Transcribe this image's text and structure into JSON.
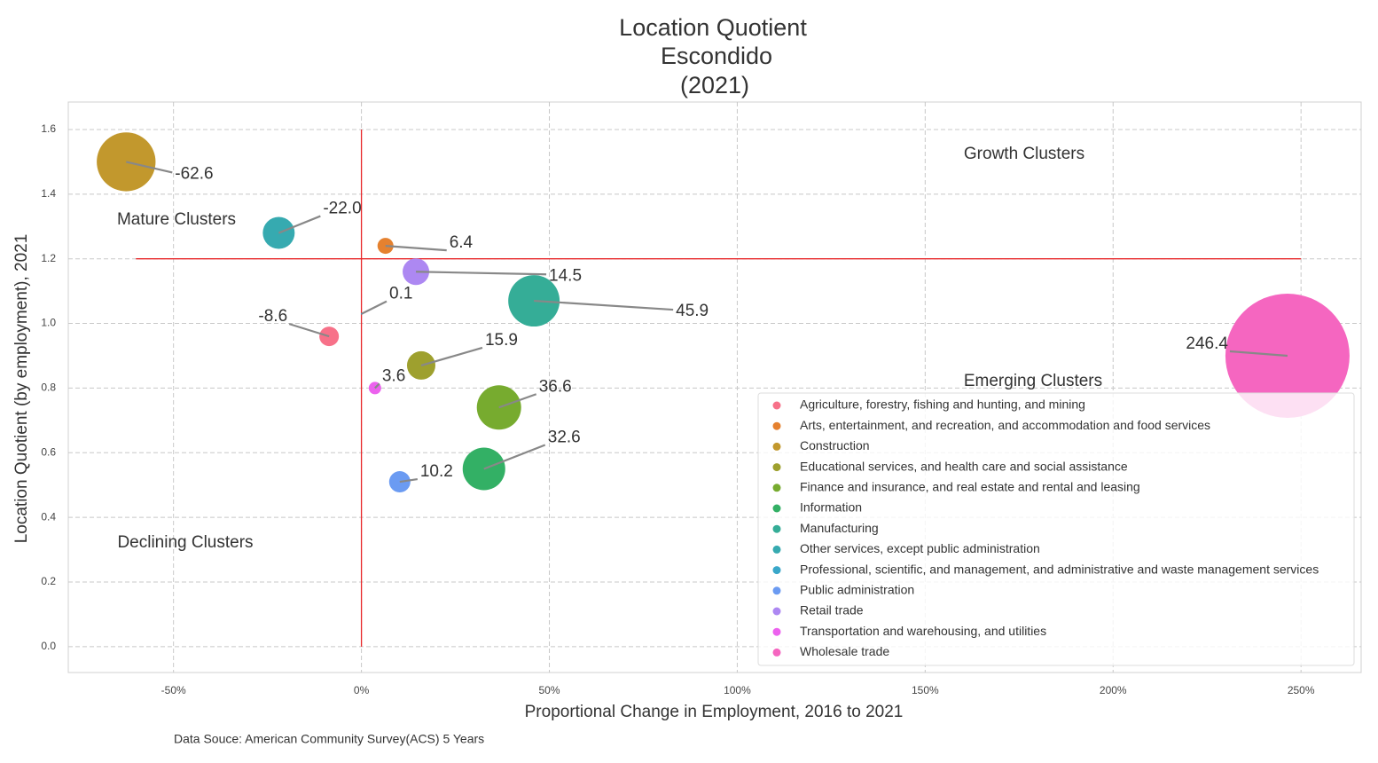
{
  "chart_data": {
    "type": "bubble",
    "title": [
      "Location Quotient",
      "Escondido",
      "(2021)"
    ],
    "x_label": "Proportional Change in Employment, 2016 to 2021",
    "y_label": "Location Quotient (by employment), 2021",
    "source": "Data Souce: American Community Survey(ACS) 5 Years",
    "xlim": [
      -78,
      266
    ],
    "ylim": [
      -0.08,
      1.685
    ],
    "xticks": [
      {
        "value": -50,
        "label": "-50%"
      },
      {
        "value": 0,
        "label": "0%"
      },
      {
        "value": 50,
        "label": "50%"
      },
      {
        "value": 100,
        "label": "100%"
      },
      {
        "value": 150,
        "label": "150%"
      },
      {
        "value": 200,
        "label": "200%"
      },
      {
        "value": 250,
        "label": "250%"
      }
    ],
    "yticks": [
      {
        "value": 0,
        "label": "0.0"
      },
      0.2,
      0.4,
      0.6,
      0.8,
      {
        "value": 1,
        "label": "1.0"
      },
      1.2,
      1.4,
      1.6
    ],
    "grid": true,
    "hline": {
      "y": 1.2,
      "xmin": -60,
      "xmax": 250,
      "color": "#e8272a"
    },
    "vline": {
      "x": 0,
      "ymin": 0,
      "ymax": 1.6,
      "color": "#e8272a"
    },
    "annotations": [
      "Growth Clusters",
      "Mature Clusters",
      "Declining Clusters",
      "Emerging Clusters"
    ],
    "legend": "lower right",
    "series": [
      {
        "name": "Agriculture, forestry, fishing and hunting, and mining",
        "color": "#f77189",
        "x": [
          -8.6
        ],
        "values": [
          0.96
        ],
        "sizes": [
          121
        ],
        "x_labels": [
          "-8.6"
        ]
      },
      {
        "name": "Arts, entertainment, and recreation, and accommodation and food services",
        "color": "#e5812f",
        "x": [
          6.4
        ],
        "values": [
          1.24
        ],
        "sizes": [
          81
        ],
        "x_labels": [
          "6.4"
        ]
      },
      {
        "name": "Construction",
        "color": "#c2982d",
        "x": [
          -62.6
        ],
        "values": [
          1.5
        ],
        "sizes": [
          1100
        ],
        "x_labels": [
          "-62.6"
        ]
      },
      {
        "name": "Educational services, and health care and social assistance",
        "color": "#9ea02e",
        "x": [
          15.9
        ],
        "values": [
          0.87
        ],
        "sizes": [
          256
        ],
        "x_labels": [
          "15.9"
        ]
      },
      {
        "name": "Finance and insurance, and real estate and rental and leasing",
        "color": "#77ab2f",
        "x": [
          36.6
        ],
        "values": [
          0.74
        ],
        "sizes": [
          625
        ],
        "x_labels": [
          "36.6"
        ]
      },
      {
        "name": "Information",
        "color": "#33b065",
        "x": [
          32.6
        ],
        "values": [
          0.55
        ],
        "sizes": [
          576
        ],
        "x_labels": [
          "32.6"
        ]
      },
      {
        "name": "Manufacturing",
        "color": "#35ad97",
        "x": [
          45.9
        ],
        "values": [
          1.07
        ],
        "sizes": [
          840
        ],
        "x_labels": [
          "45.9"
        ]
      },
      {
        "name": "Other services, except public administration",
        "color": "#36aab0",
        "x": [
          -22.0
        ],
        "values": [
          1.28
        ],
        "sizes": [
          324
        ],
        "x_labels": [
          "-22.0"
        ]
      },
      {
        "name": "Professional, scientific, and management, and administrative and waste management services",
        "color": "#39a7c9",
        "x": [
          0.1
        ],
        "values": [
          1.03
        ],
        "sizes": [
          1
        ],
        "x_labels": [
          "0.1"
        ]
      },
      {
        "name": "Public administration",
        "color": "#6b9bf2",
        "x": [
          10.2
        ],
        "values": [
          0.51
        ],
        "sizes": [
          144
        ],
        "x_labels": [
          "10.2"
        ]
      },
      {
        "name": "Retail trade",
        "color": "#ad88f2",
        "x": [
          14.5
        ],
        "values": [
          1.16
        ],
        "sizes": [
          225
        ],
        "x_labels": [
          "14.5"
        ]
      },
      {
        "name": "Transportation and warehousing, and utilities",
        "color": "#ec62ee",
        "x": [
          3.6
        ],
        "values": [
          0.8
        ],
        "sizes": [
          49
        ],
        "x_labels": [
          "3.6"
        ]
      },
      {
        "name": "Wholesale trade",
        "color": "#f566c0",
        "x": [
          246.4
        ],
        "values": [
          0.9
        ],
        "sizes": [
          4900
        ],
        "x_labels": [
          "246.4"
        ]
      }
    ]
  }
}
